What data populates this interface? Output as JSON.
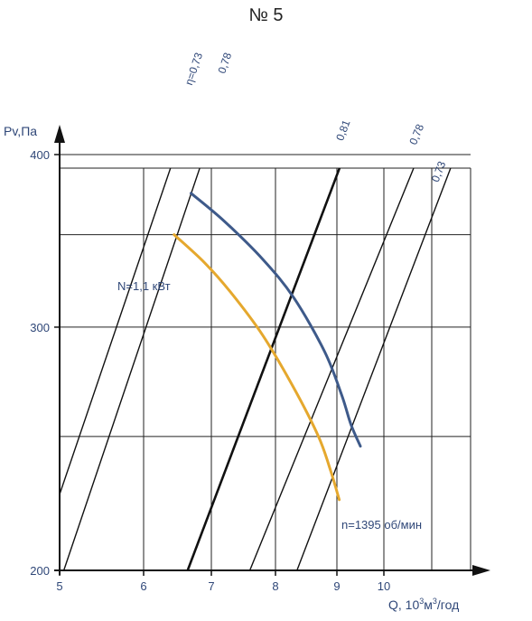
{
  "heading": "№ 5",
  "chart_data": {
    "type": "line",
    "title": "№ 5",
    "xlabel": "Q, 10³м³/год",
    "xlabel_parts": {
      "base": "Q, 10",
      "sup1": "3",
      "mid": "м",
      "sup2": "3",
      "tail": "/год"
    },
    "ylabel": "Pv,Па",
    "x_ticks": [
      "5",
      "6",
      "7",
      "8",
      "9",
      "10"
    ],
    "y_ticks": [
      "200",
      "300",
      "400"
    ],
    "xlim": [
      5,
      11.8
    ],
    "ylim": [
      200,
      480
    ],
    "y_scale": "log",
    "grid": true,
    "annotations": {
      "power": "N=1,1 кВт",
      "speed": "n=1395 об/мин"
    },
    "curves": [
      {
        "name": "power",
        "color": "#3e5a8a",
        "points": [
          [
            6.7,
            375
          ],
          [
            7.2,
            358
          ],
          [
            7.8,
            336
          ],
          [
            8.3,
            315
          ],
          [
            8.8,
            288
          ],
          [
            9.1,
            268
          ],
          [
            9.3,
            255
          ],
          [
            9.5,
            246
          ]
        ]
      },
      {
        "name": "speed",
        "color": "#e5a82e",
        "points": [
          [
            6.45,
            350
          ],
          [
            6.9,
            334
          ],
          [
            7.3,
            318
          ],
          [
            7.8,
            296
          ],
          [
            8.3,
            271
          ],
          [
            8.7,
            250
          ],
          [
            8.9,
            236
          ],
          [
            9.05,
            225
          ]
        ]
      }
    ],
    "efficiency_lines": [
      {
        "label": "η=0,73",
        "color": "#111111",
        "weight": 1.4,
        "points": [
          [
            5,
            227
          ],
          [
            6.95,
            470
          ]
        ]
      },
      {
        "label": "0,78",
        "color": "#111111",
        "weight": 1.4,
        "points": [
          [
            5.05,
            200
          ],
          [
            7.4,
            470
          ]
        ]
      },
      {
        "label": "0,81",
        "color": "#111111",
        "weight": 2.6,
        "points": [
          [
            6.65,
            200
          ],
          [
            9.4,
            420
          ]
        ]
      },
      {
        "label": "0,78",
        "color": "#111111",
        "weight": 1.4,
        "points": [
          [
            7.6,
            200
          ],
          [
            10.95,
            417
          ]
        ]
      },
      {
        "label": "0,73",
        "color": "#111111",
        "weight": 1.4,
        "points": [
          [
            8.35,
            200
          ],
          [
            11.4,
            392
          ]
        ]
      }
    ]
  }
}
